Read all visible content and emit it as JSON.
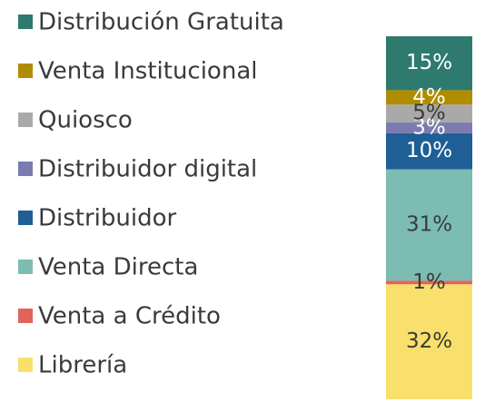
{
  "chart_data": {
    "type": "stacked-bar",
    "series": [
      {
        "name": "Distribución Gratuita",
        "color": "#2e7a6e",
        "values": [
          15
        ],
        "value_labels": [
          "15%"
        ]
      },
      {
        "name": "Venta Institucional",
        "color": "#b08d00",
        "values": [
          4
        ],
        "value_labels": [
          "4%"
        ]
      },
      {
        "name": "Quiosco",
        "color": "#a9a9a9",
        "values": [
          5
        ],
        "value_labels": [
          "5%"
        ]
      },
      {
        "name": "Distribuidor digital",
        "color": "#7b7bb0",
        "values": [
          3
        ],
        "value_labels": [
          "3%"
        ]
      },
      {
        "name": "Distribuidor",
        "color": "#1f5f96",
        "values": [
          10
        ],
        "value_labels": [
          "10%"
        ]
      },
      {
        "name": "Venta Directa",
        "color": "#7cbcb2",
        "values": [
          31
        ],
        "value_labels": [
          "31%"
        ]
      },
      {
        "name": "Venta a Crédito",
        "color": "#e0645a",
        "values": [
          1
        ],
        "value_labels": [
          "1%"
        ]
      },
      {
        "name": "Librería",
        "color": "#f9df6b",
        "values": [
          32
        ],
        "value_labels": [
          "32%"
        ]
      }
    ]
  }
}
